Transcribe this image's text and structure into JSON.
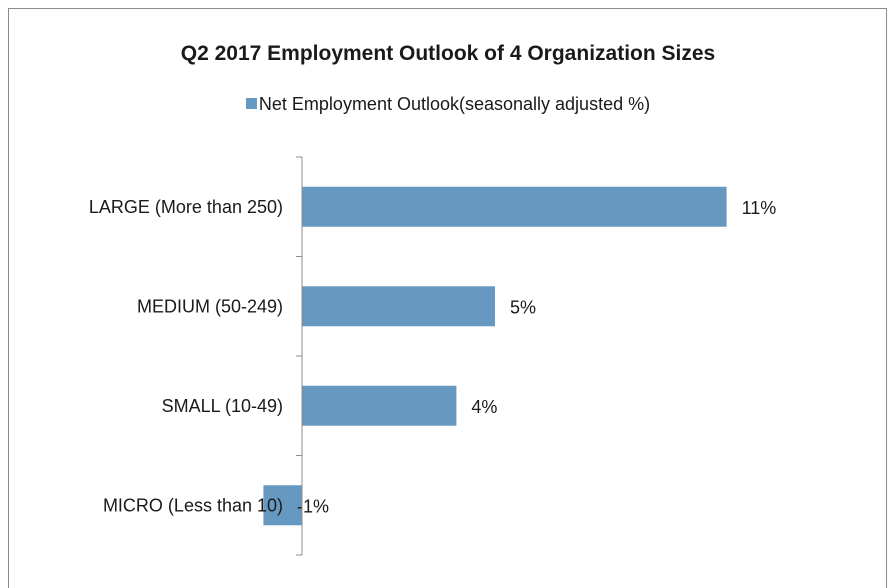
{
  "chart_data": {
    "type": "bar",
    "orientation": "horizontal",
    "title": "Q2 2017 Employment Outlook of 4 Organization Sizes",
    "categories": [
      "LARGE (More than 250)",
      "MEDIUM (50-249)",
      "SMALL (10-49)",
      "MICRO (Less than 10)"
    ],
    "series": [
      {
        "name": "Net Employment Outlook(seasonally adjusted %)",
        "values": [
          11,
          5,
          4,
          -1
        ],
        "labels": [
          "11%",
          "5%",
          "4%",
          "-1%"
        ]
      }
    ],
    "xlim": [
      -1,
      11
    ],
    "legend_position": "top",
    "grid": false,
    "color": "#6699c2"
  }
}
